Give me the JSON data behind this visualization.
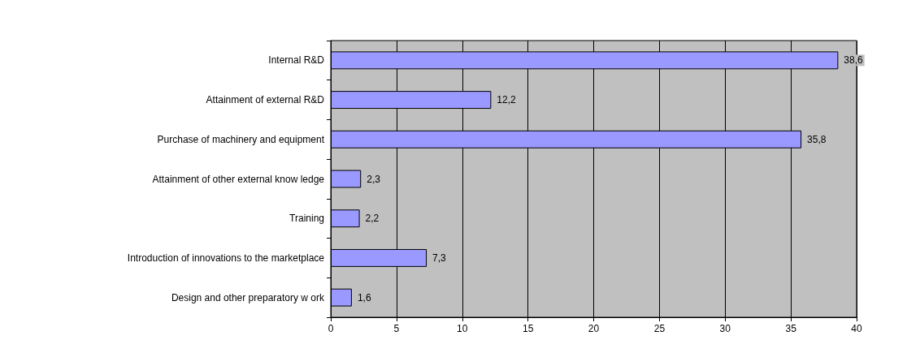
{
  "chart_data": {
    "type": "bar",
    "orientation": "horizontal",
    "categories": [
      "Internal R&D",
      "Attainment of external R&D",
      "Purchase of machinery and equipment",
      "Attainment of other external know ledge",
      "Training",
      "Introduction of innovations to the marketplace",
      "Design and other preparatory w ork"
    ],
    "values": [
      38.6,
      12.2,
      35.8,
      2.3,
      2.2,
      7.3,
      1.6
    ],
    "value_labels": [
      "38,6",
      "12,2",
      "35,8",
      "2,3",
      "2,2",
      "7,3",
      "1,6"
    ],
    "color": "#9999ff",
    "xlim": [
      0,
      40
    ],
    "xticks": [
      0,
      5,
      10,
      15,
      20,
      25,
      30,
      35,
      40
    ],
    "grid": "x"
  }
}
